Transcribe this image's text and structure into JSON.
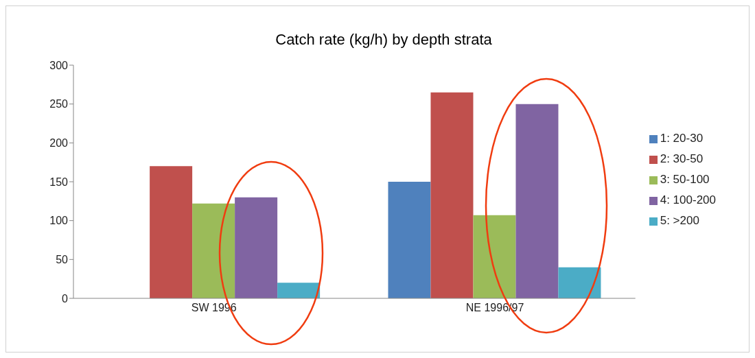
{
  "chart_data": {
    "type": "bar",
    "title": "Catch rate (kg/h) by depth strata",
    "categories": [
      "SW 1996",
      "NE 1996/97"
    ],
    "series": [
      {
        "name": "1: 20-30",
        "color": "#4f81bd",
        "values": [
          null,
          150
        ]
      },
      {
        "name": "2: 30-50",
        "color": "#c0504d",
        "values": [
          170,
          265
        ]
      },
      {
        "name": "3: 50-100",
        "color": "#9bbb59",
        "values": [
          122,
          107
        ]
      },
      {
        "name": "4: 100-200",
        "color": "#8064a2",
        "values": [
          130,
          250
        ]
      },
      {
        "name": "5: >200",
        "color": "#4bacc6",
        "values": [
          20,
          40
        ]
      }
    ],
    "ylim": [
      0,
      300
    ],
    "yticks": [
      0,
      50,
      100,
      150,
      200,
      250,
      300
    ],
    "grid": false,
    "legend": "right"
  }
}
